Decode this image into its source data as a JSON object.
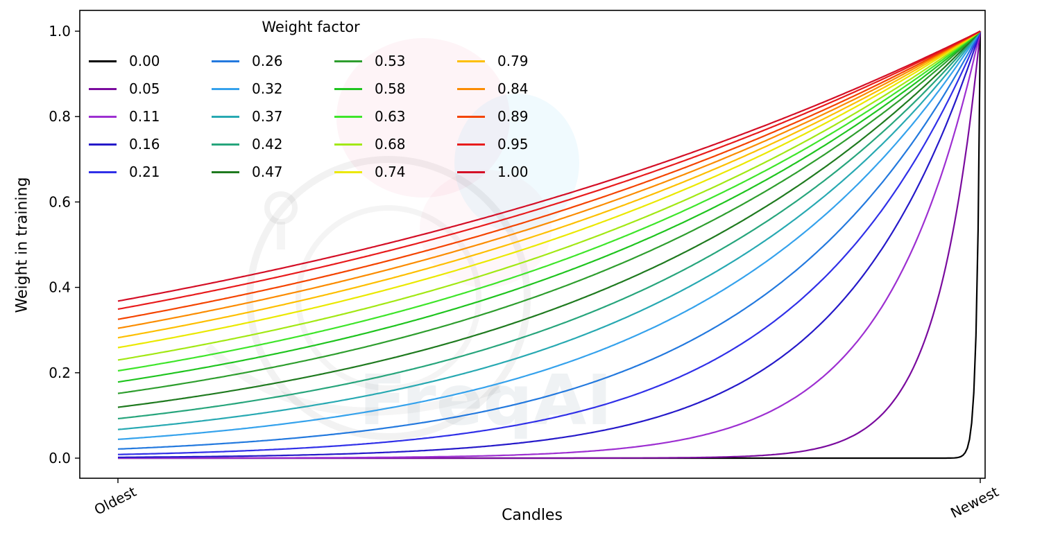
{
  "figure": {
    "xlabel": "Candles",
    "ylabel": "Weight in training",
    "legend_title": "Weight factor",
    "watermark_text": "FreqAI"
  },
  "chart_data": {
    "type": "line",
    "title": "",
    "xlabel": "Candles",
    "ylabel": "Weight in training",
    "x_tick_labels": [
      "Oldest",
      "Newest"
    ],
    "yticks": [
      0.0,
      0.2,
      0.4,
      0.6,
      0.8,
      1.0
    ],
    "ylim": [
      0,
      1
    ],
    "grid": false,
    "legend": {
      "title": "Weight factor",
      "position": "upper left",
      "ncol": 4,
      "order": "column-major"
    },
    "curve_formula": "weight(x) = exp(-(1 - x) / factor) for x in [0,1] from Oldest to Newest; all curves reach 1.0 at Newest; factor 0.00 stays at 0 until the final candle",
    "series": [
      {
        "label": "0.00",
        "factor": 0.0,
        "color": "#000000",
        "weight_at_oldest": 0.0
      },
      {
        "label": "0.05",
        "factor": 0.05,
        "color": "#7a0b9e",
        "weight_at_oldest": 0.0
      },
      {
        "label": "0.11",
        "factor": 0.11,
        "color": "#9d2fd1",
        "weight_at_oldest": 0.0
      },
      {
        "label": "0.16",
        "factor": 0.16,
        "color": "#2519c9",
        "weight_at_oldest": 0.002
      },
      {
        "label": "0.21",
        "factor": 0.21,
        "color": "#3030e8",
        "weight_at_oldest": 0.009
      },
      {
        "label": "0.26",
        "factor": 0.26,
        "color": "#2379de",
        "weight_at_oldest": 0.021
      },
      {
        "label": "0.32",
        "factor": 0.32,
        "color": "#35a2ec",
        "weight_at_oldest": 0.044
      },
      {
        "label": "0.37",
        "factor": 0.37,
        "color": "#28a9b2",
        "weight_at_oldest": 0.067
      },
      {
        "label": "0.42",
        "factor": 0.42,
        "color": "#27a57c",
        "weight_at_oldest": 0.092
      },
      {
        "label": "0.47",
        "factor": 0.47,
        "color": "#1f7a1f",
        "weight_at_oldest": 0.119
      },
      {
        "label": "0.53",
        "factor": 0.53,
        "color": "#2e9e2e",
        "weight_at_oldest": 0.151
      },
      {
        "label": "0.58",
        "factor": 0.58,
        "color": "#1fc41f",
        "weight_at_oldest": 0.178
      },
      {
        "label": "0.63",
        "factor": 0.63,
        "color": "#3ee52a",
        "weight_at_oldest": 0.204
      },
      {
        "label": "0.68",
        "factor": 0.68,
        "color": "#a2e814",
        "weight_at_oldest": 0.23
      },
      {
        "label": "0.74",
        "factor": 0.74,
        "color": "#ebe800",
        "weight_at_oldest": 0.259
      },
      {
        "label": "0.79",
        "factor": 0.79,
        "color": "#fdbf00",
        "weight_at_oldest": 0.282
      },
      {
        "label": "0.84",
        "factor": 0.84,
        "color": "#fb8c00",
        "weight_at_oldest": 0.304
      },
      {
        "label": "0.89",
        "factor": 0.89,
        "color": "#f44400",
        "weight_at_oldest": 0.325
      },
      {
        "label": "0.95",
        "factor": 0.95,
        "color": "#e81c1c",
        "weight_at_oldest": 0.349
      },
      {
        "label": "1.00",
        "factor": 1.0,
        "color": "#d40f26",
        "weight_at_oldest": 0.368
      }
    ]
  }
}
